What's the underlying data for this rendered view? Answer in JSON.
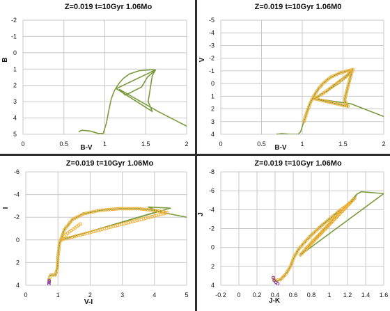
{
  "chart_data": [
    {
      "type": "line",
      "title": "Z=0.019  t=10Gyr  1.06Mo",
      "xlabel": "B-V",
      "ylabel": "B",
      "xlim": [
        0,
        2
      ],
      "ylim": [
        -2,
        5
      ],
      "y_inverted": true,
      "xticks": [
        "0",
        "0.5",
        "1",
        "1.5",
        "2"
      ],
      "yticks": [
        "-2",
        "-1",
        "0",
        "1",
        "2",
        "3",
        "4",
        "5"
      ],
      "grid": true,
      "series": [
        {
          "color": "#7a9a3c",
          "markers": false,
          "x": [
            0.68,
            0.72,
            0.82,
            0.92,
            0.98,
            1.02,
            1.05,
            1.08,
            1.12,
            1.17,
            1.22,
            1.3,
            1.42,
            1.55,
            1.62,
            1.58,
            1.53,
            1.58,
            1.14,
            1.62,
            1.52,
            1.45,
            1.25,
            1.18,
            1.65,
            2.0
          ],
          "y": [
            4.85,
            4.75,
            4.8,
            4.95,
            4.95,
            4.3,
            3.5,
            2.8,
            2.3,
            1.9,
            1.6,
            1.3,
            1.1,
            1.05,
            1.05,
            1.4,
            3.0,
            3.6,
            2.2,
            1.05,
            1.5,
            2.1,
            2.6,
            2.25,
            3.6,
            4.5
          ]
        }
      ]
    },
    {
      "type": "line",
      "title": "Z=0.019  t=10Gyr  1.06M0",
      "xlabel": "B-V",
      "ylabel": "V",
      "xlim": [
        0,
        2
      ],
      "ylim": [
        -5,
        4
      ],
      "y_inverted": true,
      "xticks": [
        "0",
        "0.5",
        "1",
        "1.5",
        "2"
      ],
      "yticks": [
        "-5",
        "-4",
        "-3",
        "-2",
        "-1",
        "0",
        "1",
        "2",
        "3",
        "4"
      ],
      "grid": true,
      "series": [
        {
          "color": "#7a9a3c",
          "markers": false,
          "x": [
            0.68,
            0.75,
            0.85,
            0.95,
            0.98,
            1.02,
            1.06,
            1.1,
            1.15,
            1.2,
            1.27,
            1.35,
            1.45,
            1.55,
            1.62,
            1.6,
            1.55,
            1.52,
            1.56,
            1.15,
            1.3,
            1.62,
            1.55,
            1.45,
            1.3,
            1.2,
            1.17,
            1.6,
            2.0
          ],
          "y": [
            4.0,
            3.95,
            4.0,
            4.0,
            3.8,
            3.0,
            2.2,
            1.5,
            0.9,
            0.4,
            -0.1,
            -0.5,
            -0.8,
            -1.0,
            -1.1,
            -0.7,
            0.5,
            1.3,
            1.8,
            1.2,
            0.6,
            -1.1,
            -0.6,
            0.0,
            0.6,
            1.0,
            1.2,
            1.6,
            2.6
          ]
        },
        {
          "color": "#f0b23a",
          "markers": true,
          "x": [
            1.02,
            1.06,
            1.1,
            1.15,
            1.2,
            1.27,
            1.35,
            1.45,
            1.55,
            1.62,
            1.6,
            1.55,
            1.52,
            1.56,
            1.15,
            1.25,
            1.4,
            1.55,
            1.62
          ],
          "y": [
            3.0,
            2.2,
            1.5,
            0.9,
            0.4,
            -0.1,
            -0.5,
            -0.8,
            -1.0,
            -1.1,
            -0.7,
            0.5,
            1.3,
            1.8,
            1.2,
            0.8,
            0.1,
            -0.6,
            -1.1
          ]
        }
      ]
    },
    {
      "type": "line",
      "title": "Z=0.019  t=10Gyr  1.06Mo",
      "xlabel": "V-I",
      "ylabel": "I",
      "xlim": [
        0,
        5
      ],
      "ylim": [
        -6,
        4
      ],
      "y_inverted": true,
      "xticks": [
        "0",
        "1",
        "2",
        "3",
        "4",
        "5"
      ],
      "yticks": [
        "-6",
        "-4",
        "-2",
        "0",
        "2",
        "4"
      ],
      "grid": true,
      "series": [
        {
          "color": "#7a9a3c",
          "markers": false,
          "x": [
            0.72,
            0.72,
            0.78,
            0.92,
            0.98,
            1.0,
            1.05,
            1.2,
            1.45,
            1.8,
            2.3,
            2.9,
            3.5,
            4.0,
            4.25,
            3.8,
            4.5,
            1.1,
            4.1,
            5.0
          ],
          "y": [
            3.8,
            3.2,
            3.1,
            3.1,
            2.5,
            1.5,
            0.3,
            -0.9,
            -1.8,
            -2.3,
            -2.6,
            -2.75,
            -2.75,
            -2.6,
            -2.4,
            -2.9,
            -2.8,
            0.0,
            -2.5,
            -2.0
          ]
        },
        {
          "color": "#f0b23a",
          "markers": true,
          "x": [
            0.72,
            0.78,
            0.92,
            0.98,
            1.0,
            1.05,
            1.2,
            1.45,
            1.8,
            2.3,
            2.9,
            3.5,
            4.0,
            4.2,
            4.4,
            1.1,
            1.3,
            1.7
          ],
          "y": [
            3.5,
            3.1,
            3.1,
            2.5,
            1.5,
            0.3,
            -0.9,
            -1.8,
            -2.3,
            -2.6,
            -2.75,
            -2.75,
            -2.6,
            -2.5,
            -2.4,
            0.0,
            -0.6,
            -1.4
          ]
        },
        {
          "color": "#8a3aa0",
          "markers": true,
          "x": [
            0.72,
            0.73
          ],
          "y": [
            3.9,
            3.6
          ]
        }
      ]
    },
    {
      "type": "line",
      "title": "Z=0.019  t=10Gyr  1.06Mo",
      "xlabel": "J-K",
      "ylabel": "J",
      "xlim": [
        -0.2,
        1.6
      ],
      "ylim": [
        -8,
        4
      ],
      "y_inverted": true,
      "xticks": [
        "-0.2",
        "0",
        "0.2",
        "0.4",
        "0.6",
        "0.8",
        "1",
        "1.2",
        "1.4",
        "1.6"
      ],
      "yticks": [
        "-8",
        "-6",
        "-4",
        "-2",
        "0",
        "2",
        "4"
      ],
      "grid": true,
      "series": [
        {
          "color": "#7a9a3c",
          "markers": false,
          "x": [
            0.38,
            0.4,
            0.46,
            0.52,
            0.57,
            0.61,
            0.66,
            0.72,
            0.8,
            0.9,
            1.0,
            1.1,
            1.2,
            1.28,
            1.3,
            1.35,
            1.6,
            0.68,
            1.3
          ],
          "y": [
            3.2,
            3.6,
            3.4,
            2.8,
            2.0,
            1.0,
            0.2,
            -0.5,
            -1.3,
            -2.2,
            -3.0,
            -3.8,
            -4.5,
            -5.2,
            -5.6,
            -5.9,
            -5.7,
            0.8,
            -5.6
          ]
        },
        {
          "color": "#f0b23a",
          "markers": true,
          "x": [
            0.38,
            0.4,
            0.46,
            0.52,
            0.57,
            0.61,
            0.66,
            0.72,
            0.8,
            0.9,
            1.0,
            1.1,
            1.2,
            1.28,
            0.68,
            0.8,
            0.95,
            1.1,
            1.22
          ],
          "y": [
            3.2,
            3.5,
            3.4,
            2.8,
            2.0,
            1.0,
            0.2,
            -0.5,
            -1.3,
            -2.2,
            -3.0,
            -3.8,
            -4.5,
            -5.2,
            0.8,
            -0.5,
            -2.0,
            -3.5,
            -4.7
          ]
        },
        {
          "color": "#8a3aa0",
          "markers": true,
          "x": [
            0.38,
            0.39,
            0.41,
            0.43
          ],
          "y": [
            3.2,
            3.5,
            3.7,
            3.85
          ]
        }
      ]
    }
  ]
}
